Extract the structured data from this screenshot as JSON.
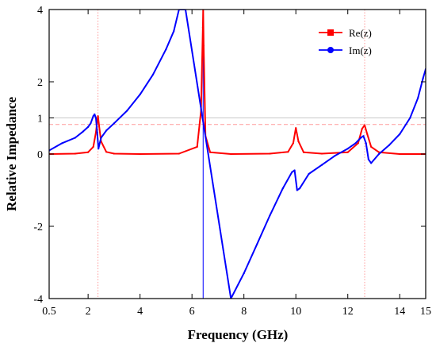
{
  "chart_data": {
    "type": "line",
    "xlabel": "Frequency (GHz)",
    "ylabel": "Relative Impedance",
    "xlim": [
      0.5,
      15
    ],
    "ylim": [
      -4,
      4
    ],
    "x_ticks": [
      0.5,
      2,
      4,
      6,
      8,
      10,
      12,
      14,
      15
    ],
    "x_tick_labels": [
      "0.5",
      "2",
      "4",
      "6",
      "8",
      "10",
      "12",
      "14",
      "15"
    ],
    "y_ticks": [
      -4,
      -2,
      0,
      1,
      2,
      4
    ],
    "y_tick_labels": [
      "-4",
      "-2",
      "0",
      "1",
      "2",
      "4"
    ],
    "legend_position": "top-right",
    "reference_lines": [
      {
        "axis": "y",
        "value": 1,
        "color": "#c8c8c8",
        "style": "solid"
      },
      {
        "axis": "y",
        "value": 0.82,
        "color": "#ff9a9a",
        "style": "dashed"
      },
      {
        "axis": "x",
        "value": 2.38,
        "color": "#ff9a9a",
        "style": "dotted"
      },
      {
        "axis": "x",
        "value": 12.65,
        "color": "#ff9a9a",
        "style": "dotted"
      },
      {
        "axis": "x",
        "value": 6.43,
        "color": "#0000ff",
        "style": "solid"
      }
    ],
    "series": [
      {
        "name": "Re(z)",
        "color": "#ff0000",
        "marker": "square",
        "x": [
          0.5,
          1.5,
          2.0,
          2.2,
          2.3,
          2.35,
          2.38,
          2.42,
          2.5,
          2.7,
          3.0,
          4.0,
          5.5,
          6.2,
          6.35,
          6.42,
          6.43,
          6.45,
          6.52,
          6.7,
          7.5,
          9.0,
          9.7,
          9.9,
          10.0,
          10.1,
          10.3,
          11.0,
          12.0,
          12.4,
          12.55,
          12.65,
          12.75,
          12.9,
          13.2,
          14.0,
          15.0
        ],
        "y": [
          0.0,
          0.01,
          0.05,
          0.2,
          0.6,
          0.9,
          1.05,
          0.8,
          0.35,
          0.06,
          0.01,
          0.0,
          0.01,
          0.2,
          1.2,
          3.5,
          4.0,
          3.0,
          0.5,
          0.05,
          0.0,
          0.01,
          0.06,
          0.3,
          0.72,
          0.35,
          0.05,
          0.01,
          0.05,
          0.3,
          0.7,
          0.8,
          0.55,
          0.2,
          0.05,
          0.0,
          0.0
        ]
      },
      {
        "name": "Im(z)",
        "color": "#0000ff",
        "marker": "circle",
        "x": [
          0.5,
          1.0,
          1.5,
          1.8,
          2.0,
          2.1,
          2.2,
          2.25,
          2.3,
          2.35,
          2.4,
          2.5,
          2.7,
          3.0,
          3.5,
          4.0,
          4.5,
          5.0,
          5.3,
          5.5,
          5.75,
          7.5,
          8.0,
          8.5,
          9.0,
          9.5,
          9.85,
          9.95,
          10.05,
          10.15,
          10.5,
          11.0,
          11.5,
          12.0,
          12.3,
          12.5,
          12.6,
          12.7,
          12.8,
          12.9,
          13.2,
          13.6,
          14.0,
          14.4,
          14.7,
          14.9,
          15.0
        ],
        "y": [
          0.1,
          0.3,
          0.45,
          0.62,
          0.75,
          0.85,
          1.05,
          1.1,
          1.0,
          0.6,
          0.15,
          0.45,
          0.65,
          0.85,
          1.2,
          1.65,
          2.2,
          2.9,
          3.4,
          4.0,
          4.0,
          -4.0,
          -3.3,
          -2.5,
          -1.7,
          -0.95,
          -0.5,
          -0.45,
          -1.0,
          -0.95,
          -0.55,
          -0.3,
          -0.05,
          0.15,
          0.3,
          0.45,
          0.5,
          0.3,
          -0.15,
          -0.25,
          0.0,
          0.25,
          0.55,
          1.0,
          1.55,
          2.1,
          2.35
        ]
      }
    ]
  }
}
